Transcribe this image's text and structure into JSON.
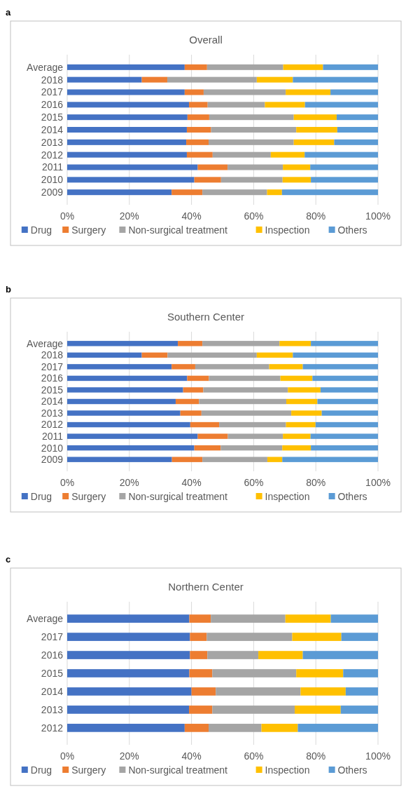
{
  "chart_data": [
    {
      "type": "bar",
      "orientation": "horizontal",
      "stacked": true,
      "title": "Overall",
      "annotations": [
        "a"
      ],
      "legend": "bottom",
      "grid": "x",
      "categories": [
        "Average",
        "2018",
        "2017",
        "2016",
        "2015",
        "2014",
        "2013",
        "2012",
        "2011",
        "2010",
        "2009"
      ],
      "xlim": [
        0,
        100
      ],
      "xticks": [
        {
          "value": 0,
          "label": "0%"
        },
        {
          "value": 20,
          "label": "20%"
        },
        {
          "value": 40,
          "label": "40%"
        },
        {
          "value": 60,
          "label": "60%"
        },
        {
          "value": 80,
          "label": "80%"
        },
        {
          "value": 100,
          "label": "100%"
        }
      ],
      "series": [
        {
          "name": "Drug",
          "color": "#4472c4",
          "values": [
            37.8,
            24.0,
            37.8,
            39.2,
            38.7,
            38.5,
            38.3,
            38.5,
            42.0,
            40.9,
            33.6
          ]
        },
        {
          "name": "Surgery",
          "color": "#ed7d31",
          "values": [
            7.2,
            8.2,
            6.1,
            6.0,
            7.0,
            7.8,
            7.2,
            8.3,
            9.6,
            8.6,
            9.9
          ]
        },
        {
          "name": "Non-surgical treatment",
          "color": "#a5a5a5",
          "values": [
            24.5,
            28.8,
            26.4,
            18.4,
            27.2,
            27.4,
            27.4,
            18.7,
            17.8,
            19.8,
            20.8
          ]
        },
        {
          "name": "Inspection",
          "color": "#ffc000",
          "values": [
            12.8,
            11.6,
            14.4,
            12.9,
            13.8,
            13.2,
            13.0,
            10.9,
            8.8,
            9.1,
            4.8
          ]
        },
        {
          "name": "Others",
          "color": "#5b9bd5",
          "values": [
            17.7,
            27.4,
            15.3,
            23.5,
            13.3,
            13.1,
            14.1,
            23.6,
            21.8,
            21.6,
            30.9
          ]
        }
      ]
    },
    {
      "type": "bar",
      "orientation": "horizontal",
      "stacked": true,
      "title": "Southern Center",
      "annotations": [
        "b"
      ],
      "legend": "bottom",
      "grid": "x",
      "categories": [
        "Average",
        "2018",
        "2017",
        "2016",
        "2015",
        "2014",
        "2013",
        "2012",
        "2011",
        "2010",
        "2009"
      ],
      "xlim": [
        0,
        100
      ],
      "xticks": [
        {
          "value": 0,
          "label": "0%"
        },
        {
          "value": 20,
          "label": "20%"
        },
        {
          "value": 40,
          "label": "40%"
        },
        {
          "value": 60,
          "label": "60%"
        },
        {
          "value": 80,
          "label": "80%"
        },
        {
          "value": 100,
          "label": "100%"
        }
      ],
      "series": [
        {
          "name": "Drug",
          "color": "#4472c4",
          "values": [
            35.6,
            24.0,
            33.6,
            38.6,
            37.3,
            34.9,
            36.4,
            39.6,
            42.0,
            40.9,
            33.7
          ]
        },
        {
          "name": "Surgery",
          "color": "#ed7d31",
          "values": [
            7.9,
            8.3,
            7.6,
            7.0,
            6.5,
            7.5,
            6.8,
            9.3,
            9.7,
            8.5,
            9.8
          ]
        },
        {
          "name": "Non-surgical treatment",
          "color": "#a5a5a5",
          "values": [
            24.8,
            28.7,
            23.8,
            23.0,
            27.2,
            28.1,
            28.9,
            21.5,
            17.7,
            19.8,
            20.9
          ]
        },
        {
          "name": "Inspection",
          "color": "#ffc000",
          "values": [
            10.1,
            11.6,
            10.8,
            10.3,
            10.5,
            10.0,
            9.8,
            9.5,
            8.9,
            9.2,
            4.8
          ]
        },
        {
          "name": "Others",
          "color": "#5b9bd5",
          "values": [
            21.6,
            27.4,
            24.2,
            21.1,
            18.5,
            19.5,
            18.1,
            20.1,
            21.7,
            21.6,
            30.8
          ]
        }
      ]
    },
    {
      "type": "bar",
      "orientation": "horizontal",
      "stacked": true,
      "title": "Northern Center",
      "annotations": [
        "c"
      ],
      "legend": "bottom",
      "grid": "x",
      "categories": [
        "Average",
        "2017",
        "2016",
        "2015",
        "2014",
        "2013",
        "2012"
      ],
      "xlim": [
        0,
        100
      ],
      "xticks": [
        {
          "value": 0,
          "label": "0%"
        },
        {
          "value": 20,
          "label": "20%"
        },
        {
          "value": 40,
          "label": "40%"
        },
        {
          "value": 60,
          "label": "60%"
        },
        {
          "value": 80,
          "label": "80%"
        },
        {
          "value": 100,
          "label": "100%"
        }
      ],
      "series": [
        {
          "name": "Drug",
          "color": "#4472c4",
          "values": [
            39.3,
            39.5,
            39.5,
            39.3,
            40.0,
            39.2,
            37.8
          ]
        },
        {
          "name": "Surgery",
          "color": "#ed7d31",
          "values": [
            6.9,
            5.4,
            5.6,
            7.4,
            7.8,
            7.5,
            7.7
          ]
        },
        {
          "name": "Non-surgical treatment",
          "color": "#a5a5a5",
          "values": [
            24.0,
            27.5,
            16.4,
            27.0,
            27.3,
            26.5,
            17.0
          ]
        },
        {
          "name": "Inspection",
          "color": "#ffc000",
          "values": [
            14.6,
            15.8,
            14.3,
            15.1,
            14.5,
            14.8,
            11.7
          ]
        },
        {
          "name": "Others",
          "color": "#5b9bd5",
          "values": [
            15.2,
            11.8,
            24.2,
            11.2,
            10.4,
            12.0,
            25.8
          ]
        }
      ]
    }
  ]
}
